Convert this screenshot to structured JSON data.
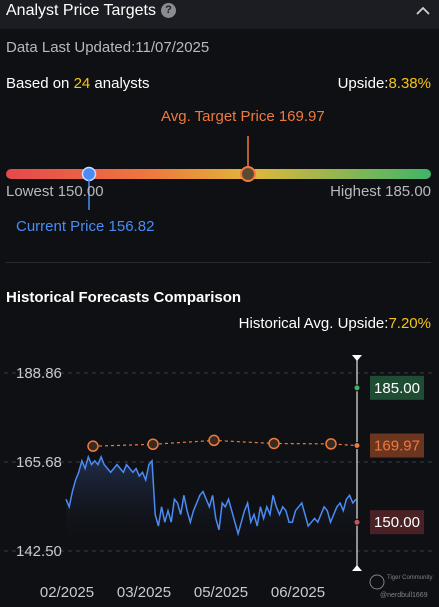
{
  "header": {
    "title": "Analyst Price Targets",
    "help_glyph": "?"
  },
  "updated": {
    "label": "Data Last Updated:",
    "date": "11/07/2025"
  },
  "summary": {
    "based_prefix": "Based on ",
    "analyst_count": "24",
    "based_suffix": " analysts",
    "upside_label": "Upside:",
    "upside_value": "8.38%"
  },
  "targets": {
    "avg_label": "Avg. Target Price 169.97",
    "lowest_label": "Lowest 150.00",
    "highest_label": "Highest 185.00",
    "current_label": "Current Price 156.82",
    "low": 150.0,
    "high": 185.0,
    "avg": 169.97,
    "current": 156.82
  },
  "historical": {
    "title": "Historical Forecasts Comparison",
    "upside_label": "Historical Avg. Upside:",
    "upside_value": "7.20%",
    "watermark_brand": "Tiger Community",
    "watermark_user": "@nerdbull1669"
  },
  "colors": {
    "accent_yellow": "#f5c518",
    "avg_orange": "#ef7a3d",
    "current_blue": "#4b8bf5",
    "high_green": "#2e7d4f",
    "low_red": "#7a3535"
  },
  "chart_data": {
    "type": "line",
    "ylim": [
      142.5,
      188.86
    ],
    "yticks": [
      "188.86",
      "165.68",
      "142.50"
    ],
    "xticks": [
      "02/2025",
      "03/2025",
      "05/2025",
      "06/2025"
    ],
    "series": [
      {
        "values": [
          156,
          154,
          158,
          161,
          163,
          166,
          164,
          167,
          165,
          166,
          165,
          167,
          165,
          164,
          163,
          164,
          165,
          164,
          163,
          165,
          164,
          163,
          164,
          162,
          163,
          161,
          165,
          166,
          152,
          149,
          154,
          150,
          153,
          150,
          156,
          155,
          152,
          157,
          153,
          150,
          153,
          155,
          157,
          158,
          156,
          154,
          157,
          151,
          148,
          155,
          154,
          156,
          153,
          150,
          147,
          150,
          153,
          155,
          150,
          152,
          149,
          154,
          151,
          154,
          152,
          157,
          154,
          152,
          154,
          153,
          150,
          150,
          153,
          154,
          155,
          152,
          149,
          150,
          151,
          150,
          152,
          154,
          153,
          150,
          152,
          154,
          155,
          153,
          156,
          157,
          155,
          156
        ]
      },
      {
        "values": [
          169.8,
          170.3,
          171.3,
          170.5,
          170.4,
          169.97
        ]
      }
    ],
    "end_labels": [
      {
        "value": 185.0,
        "text": "185.00"
      },
      {
        "value": 169.97,
        "text": "169.97"
      },
      {
        "value": 150.0,
        "text": "150.00"
      }
    ]
  }
}
